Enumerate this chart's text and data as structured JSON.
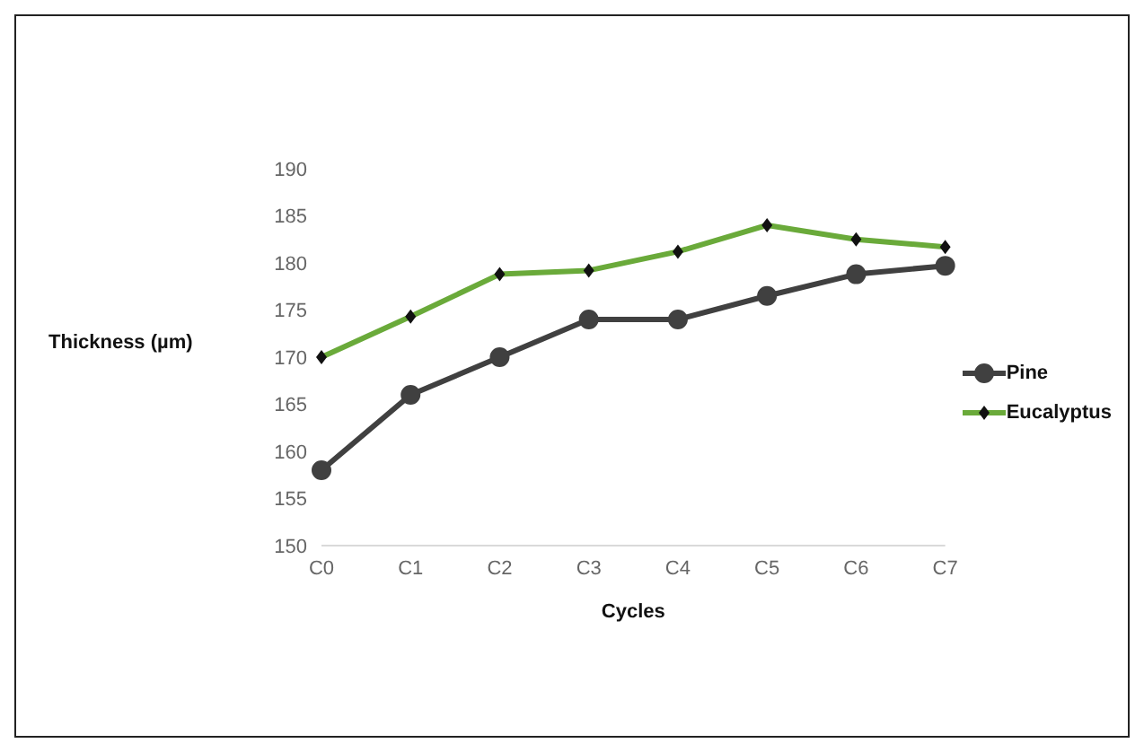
{
  "chart_data": {
    "type": "line",
    "xlabel": "Cycles",
    "ylabel": "Thickness (µm)",
    "categories": [
      "C0",
      "C1",
      "C2",
      "C3",
      "C4",
      "C5",
      "C6",
      "C7"
    ],
    "series": [
      {
        "name": "Pine",
        "color": "#404040",
        "marker": "circle",
        "values": [
          158,
          166,
          170,
          174,
          174,
          176.5,
          178.8,
          179.7
        ]
      },
      {
        "name": "Eucalyptus",
        "color": "#6aaa3a",
        "marker": "diamond",
        "values": [
          170,
          174.3,
          178.8,
          179.2,
          181.2,
          184,
          182.5,
          181.7
        ]
      }
    ],
    "ylim": [
      150,
      190
    ],
    "yticks": [
      150,
      155,
      160,
      165,
      170,
      175,
      180,
      185,
      190
    ],
    "grid": false,
    "legend": "right"
  }
}
